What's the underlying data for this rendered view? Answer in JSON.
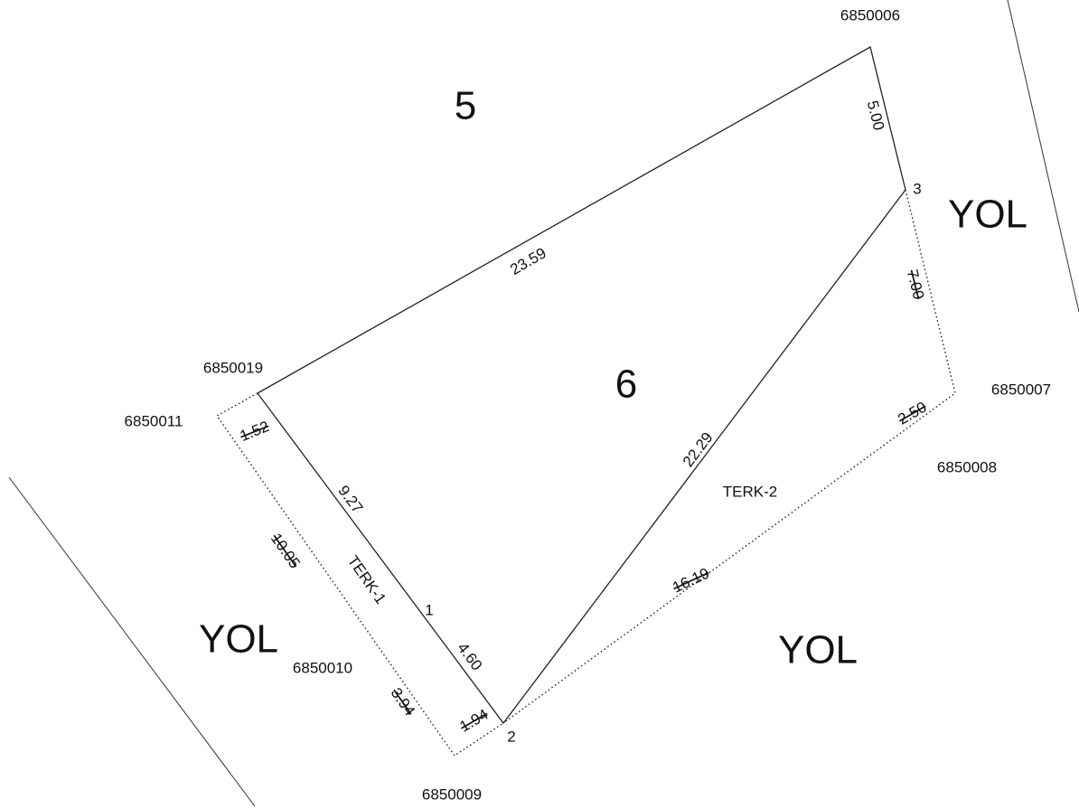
{
  "parcels": [
    "5",
    "6"
  ],
  "roads": [
    "YOL",
    "YOL",
    "YOL"
  ],
  "parcel_ids": [
    "6850006",
    "6850019",
    "6850011",
    "6850007",
    "6850008",
    "6850010",
    "6850009"
  ],
  "points": [
    "1",
    "2",
    "3"
  ],
  "lengths": [
    "23.59",
    "5.00",
    "22.29",
    "9.27",
    "4.60",
    "1.52",
    "10.05",
    "3.94",
    "1.94",
    "16.19",
    "2.50",
    "7.00"
  ],
  "terk": [
    "TERK-1",
    "TERK-2"
  ]
}
